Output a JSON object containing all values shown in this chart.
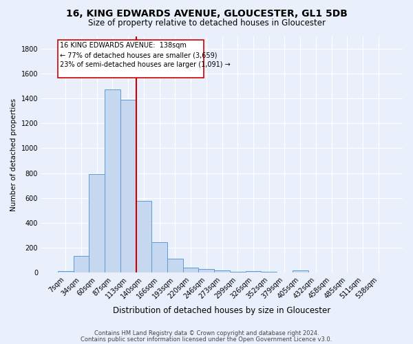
{
  "title": "16, KING EDWARDS AVENUE, GLOUCESTER, GL1 5DB",
  "subtitle": "Size of property relative to detached houses in Gloucester",
  "xlabel": "Distribution of detached houses by size in Gloucester",
  "ylabel": "Number of detached properties",
  "footnote1": "Contains HM Land Registry data © Crown copyright and database right 2024.",
  "footnote2": "Contains public sector information licensed under the Open Government Licence v3.0.",
  "bin_labels": [
    "7sqm",
    "34sqm",
    "60sqm",
    "87sqm",
    "113sqm",
    "140sqm",
    "166sqm",
    "193sqm",
    "220sqm",
    "246sqm",
    "273sqm",
    "299sqm",
    "326sqm",
    "352sqm",
    "379sqm",
    "405sqm",
    "432sqm",
    "458sqm",
    "485sqm",
    "511sqm",
    "538sqm"
  ],
  "bar_heights": [
    15,
    135,
    790,
    1470,
    1390,
    575,
    245,
    115,
    42,
    28,
    20,
    10,
    15,
    10,
    0,
    20,
    0,
    0,
    0,
    0,
    0
  ],
  "bar_color": "#c5d8f0",
  "bar_edge_color": "#5b9bd5",
  "vline_index": 4.5,
  "vline_color": "#cc0000",
  "ann_line1": "16 KING EDWARDS AVENUE:  138sqm",
  "ann_line2": "← 77% of detached houses are smaller (3,659)",
  "ann_line3": "23% of semi-detached houses are larger (1,091) →",
  "ylim": [
    0,
    1900
  ],
  "yticks": [
    0,
    200,
    400,
    600,
    800,
    1000,
    1200,
    1400,
    1600,
    1800
  ],
  "bg_color": "#eaf0fb",
  "grid_color": "#ffffff",
  "title_fontsize": 10,
  "subtitle_fontsize": 8.5,
  "xlabel_fontsize": 8.5,
  "ylabel_fontsize": 7.5,
  "tick_fontsize": 7,
  "annotation_fontsize": 7,
  "footnote_fontsize": 6
}
